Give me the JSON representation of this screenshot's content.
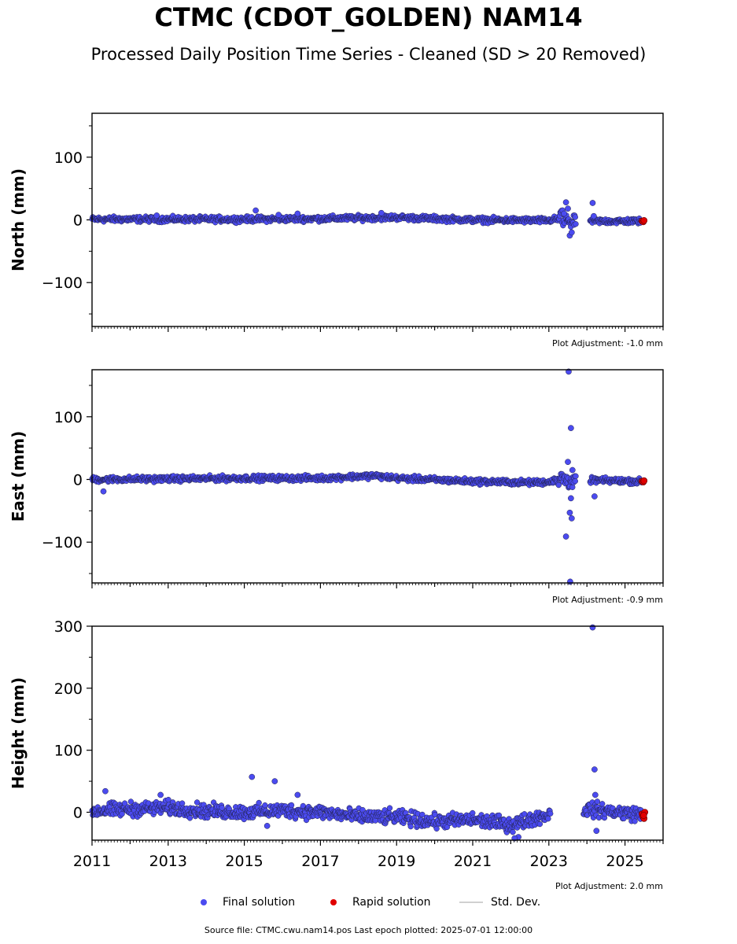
{
  "title": "CTMC (CDOT_GOLDEN) NAM14",
  "subtitle": "Processed Daily Position Time Series - Cleaned (SD > 20 Removed)",
  "colors": {
    "final": "#4b4bf0",
    "rapid": "#e00000",
    "std": "#b8b8b8",
    "edge": "#20204a"
  },
  "legend": {
    "final": "Final solution",
    "rapid": "Rapid solution",
    "std": "Std. Dev."
  },
  "footer": "Source file: CTMC.cwu.nam14.pos  Last epoch plotted: 2025-07-01 12:00:00",
  "chart_data": [
    {
      "type": "scatter",
      "ylabel": "North (mm)",
      "xlim": [
        2011.0,
        2026.0
      ],
      "ylim": [
        -170,
        170
      ],
      "yticks": [
        100,
        0,
        -100
      ],
      "ytick_labels": [
        "100",
        "0",
        "−100"
      ],
      "adjustment": "Plot Adjustment: -1.0 mm",
      "trend": [
        [
          2011.0,
          1
        ],
        [
          2013.0,
          1
        ],
        [
          2015.0,
          1
        ],
        [
          2017.0,
          2
        ],
        [
          2019.0,
          4
        ],
        [
          2021.0,
          0
        ],
        [
          2023.0,
          -1
        ],
        [
          2023.3,
          3
        ],
        [
          2023.6,
          -3
        ],
        [
          2024.1,
          -2
        ],
        [
          2025.4,
          -2
        ]
      ],
      "scatter": 3,
      "gaps": [
        [
          2023.72,
          2024.08
        ]
      ],
      "outliers": [
        [
          2015.3,
          15
        ],
        [
          2015.9,
          8
        ],
        [
          2016.4,
          10
        ],
        [
          2012.7,
          7
        ],
        [
          2018.6,
          11
        ],
        [
          2023.45,
          28
        ],
        [
          2023.5,
          18
        ],
        [
          2023.55,
          -25
        ],
        [
          2023.6,
          -20
        ],
        [
          2023.4,
          10
        ],
        [
          2024.15,
          27
        ],
        [
          2024.18,
          6
        ]
      ],
      "rapid": [
        [
          2025.45,
          -2
        ],
        [
          2025.48,
          -3
        ],
        [
          2025.5,
          -1
        ]
      ]
    },
    {
      "type": "scatter",
      "ylabel": "East (mm)",
      "xlim": [
        2011.0,
        2026.0
      ],
      "ylim": [
        -165,
        175
      ],
      "yticks": [
        100,
        0,
        -100
      ],
      "ytick_labels": [
        "100",
        "0",
        "−100"
      ],
      "adjustment": "Plot Adjustment: -0.9 mm",
      "trend": [
        [
          2011.0,
          0
        ],
        [
          2013.0,
          1
        ],
        [
          2015.0,
          2
        ],
        [
          2017.0,
          2
        ],
        [
          2018.4,
          6
        ],
        [
          2019.0,
          2
        ],
        [
          2021.0,
          -3
        ],
        [
          2022.5,
          -5
        ],
        [
          2023.0,
          -4
        ],
        [
          2023.3,
          3
        ],
        [
          2023.6,
          -5
        ],
        [
          2024.1,
          -1
        ],
        [
          2025.4,
          -3
        ]
      ],
      "scatter": 3,
      "gaps": [
        [
          2023.72,
          2024.08
        ]
      ],
      "outliers": [
        [
          2011.3,
          -19
        ],
        [
          2023.52,
          172
        ],
        [
          2023.58,
          82
        ],
        [
          2023.45,
          -91
        ],
        [
          2023.6,
          -62
        ],
        [
          2023.55,
          -53
        ],
        [
          2023.5,
          28
        ],
        [
          2023.62,
          15
        ],
        [
          2023.58,
          -30
        ],
        [
          2024.2,
          -27
        ],
        [
          2023.56,
          -163
        ]
      ],
      "rapid": [
        [
          2025.45,
          -3
        ],
        [
          2025.48,
          -4
        ],
        [
          2025.5,
          -2
        ]
      ]
    },
    {
      "type": "scatter",
      "ylabel": "Height (mm)",
      "xlim": [
        2011.0,
        2026.0
      ],
      "ylim": [
        -45,
        300
      ],
      "yticks": [
        300,
        200,
        100,
        0
      ],
      "ytick_labels": [
        "300",
        "200",
        "100",
        "0"
      ],
      "xticks": [
        2011,
        2013,
        2015,
        2017,
        2019,
        2021,
        2023,
        2025
      ],
      "xtick_labels": [
        "2011",
        "2013",
        "2015",
        "2017",
        "2019",
        "2021",
        "2023",
        "2025"
      ],
      "adjustment": "Plot Adjustment: 2.0 mm",
      "trend": [
        [
          2011.0,
          2
        ],
        [
          2012.0,
          5
        ],
        [
          2013.0,
          7
        ],
        [
          2014.0,
          2
        ],
        [
          2015.0,
          0
        ],
        [
          2016.0,
          3
        ],
        [
          2017.0,
          0
        ],
        [
          2018.0,
          -7
        ],
        [
          2019.0,
          -8
        ],
        [
          2020.0,
          -15
        ],
        [
          2021.0,
          -12
        ],
        [
          2022.0,
          -20
        ],
        [
          2022.9,
          -5
        ],
        [
          2024.0,
          5
        ],
        [
          2025.4,
          -3
        ]
      ],
      "scatter": 8,
      "gaps": [
        [
          2023.05,
          2023.9
        ]
      ],
      "outliers": [
        [
          2011.35,
          34
        ],
        [
          2012.8,
          28
        ],
        [
          2015.2,
          57
        ],
        [
          2015.8,
          50
        ],
        [
          2016.4,
          28
        ],
        [
          2015.6,
          -22
        ],
        [
          2024.15,
          298
        ],
        [
          2024.2,
          69
        ],
        [
          2024.22,
          28
        ],
        [
          2024.25,
          -30
        ],
        [
          2022.2,
          -40
        ],
        [
          2022.1,
          -42
        ]
      ],
      "rapid": [
        [
          2025.45,
          -3
        ],
        [
          2025.47,
          -7
        ],
        [
          2025.5,
          -10
        ],
        [
          2025.52,
          0
        ],
        [
          2025.49,
          -5
        ]
      ]
    }
  ]
}
